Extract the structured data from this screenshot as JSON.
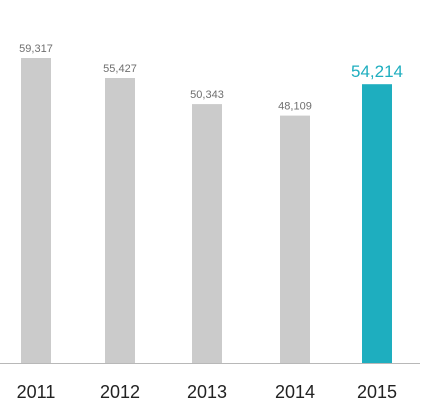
{
  "chart_data": {
    "type": "bar",
    "categories": [
      "2011",
      "2012",
      "2013",
      "2014",
      "2015"
    ],
    "values": [
      59317,
      55427,
      50343,
      48109,
      54214
    ],
    "value_labels": [
      "59,317",
      "55,427",
      "50,343",
      "48,109",
      "54,214"
    ],
    "highlight_index": 4,
    "title": "",
    "xlabel": "",
    "ylabel": "",
    "ylim": [
      0,
      60000
    ],
    "grid": false,
    "legend": "none",
    "colors": {
      "bar": "#cbcbcb",
      "highlight": "#1eaebf",
      "label": "#6f6f6f",
      "tick": "#222222",
      "axis": "#b8b8b8"
    }
  }
}
